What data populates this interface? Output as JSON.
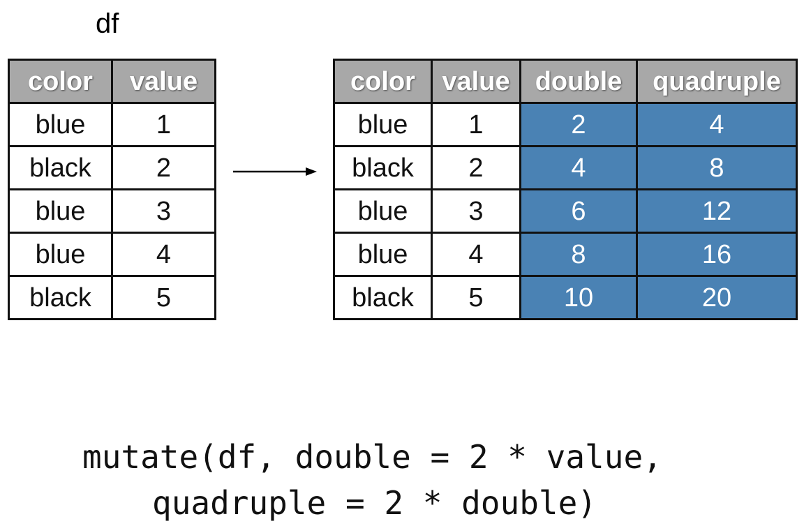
{
  "input": {
    "name": "df",
    "columns": [
      "color",
      "value"
    ],
    "rows": [
      [
        "blue",
        "1"
      ],
      [
        "black",
        "2"
      ],
      [
        "blue",
        "3"
      ],
      [
        "blue",
        "4"
      ],
      [
        "black",
        "5"
      ]
    ]
  },
  "output": {
    "columns": [
      "color",
      "value",
      "double",
      "quadruple"
    ],
    "rows": [
      [
        "blue",
        "1",
        "2",
        "4"
      ],
      [
        "black",
        "2",
        "4",
        "8"
      ],
      [
        "blue",
        "3",
        "6",
        "12"
      ],
      [
        "blue",
        "4",
        "8",
        "16"
      ],
      [
        "black",
        "5",
        "10",
        "20"
      ]
    ]
  },
  "code": {
    "line1": "mutate(df, double = 2 * value,",
    "line2": "quadruple = 2 * double)"
  },
  "colors": {
    "header_bg": "#a8a8a8",
    "new_column_bg": "#4a82b4"
  }
}
